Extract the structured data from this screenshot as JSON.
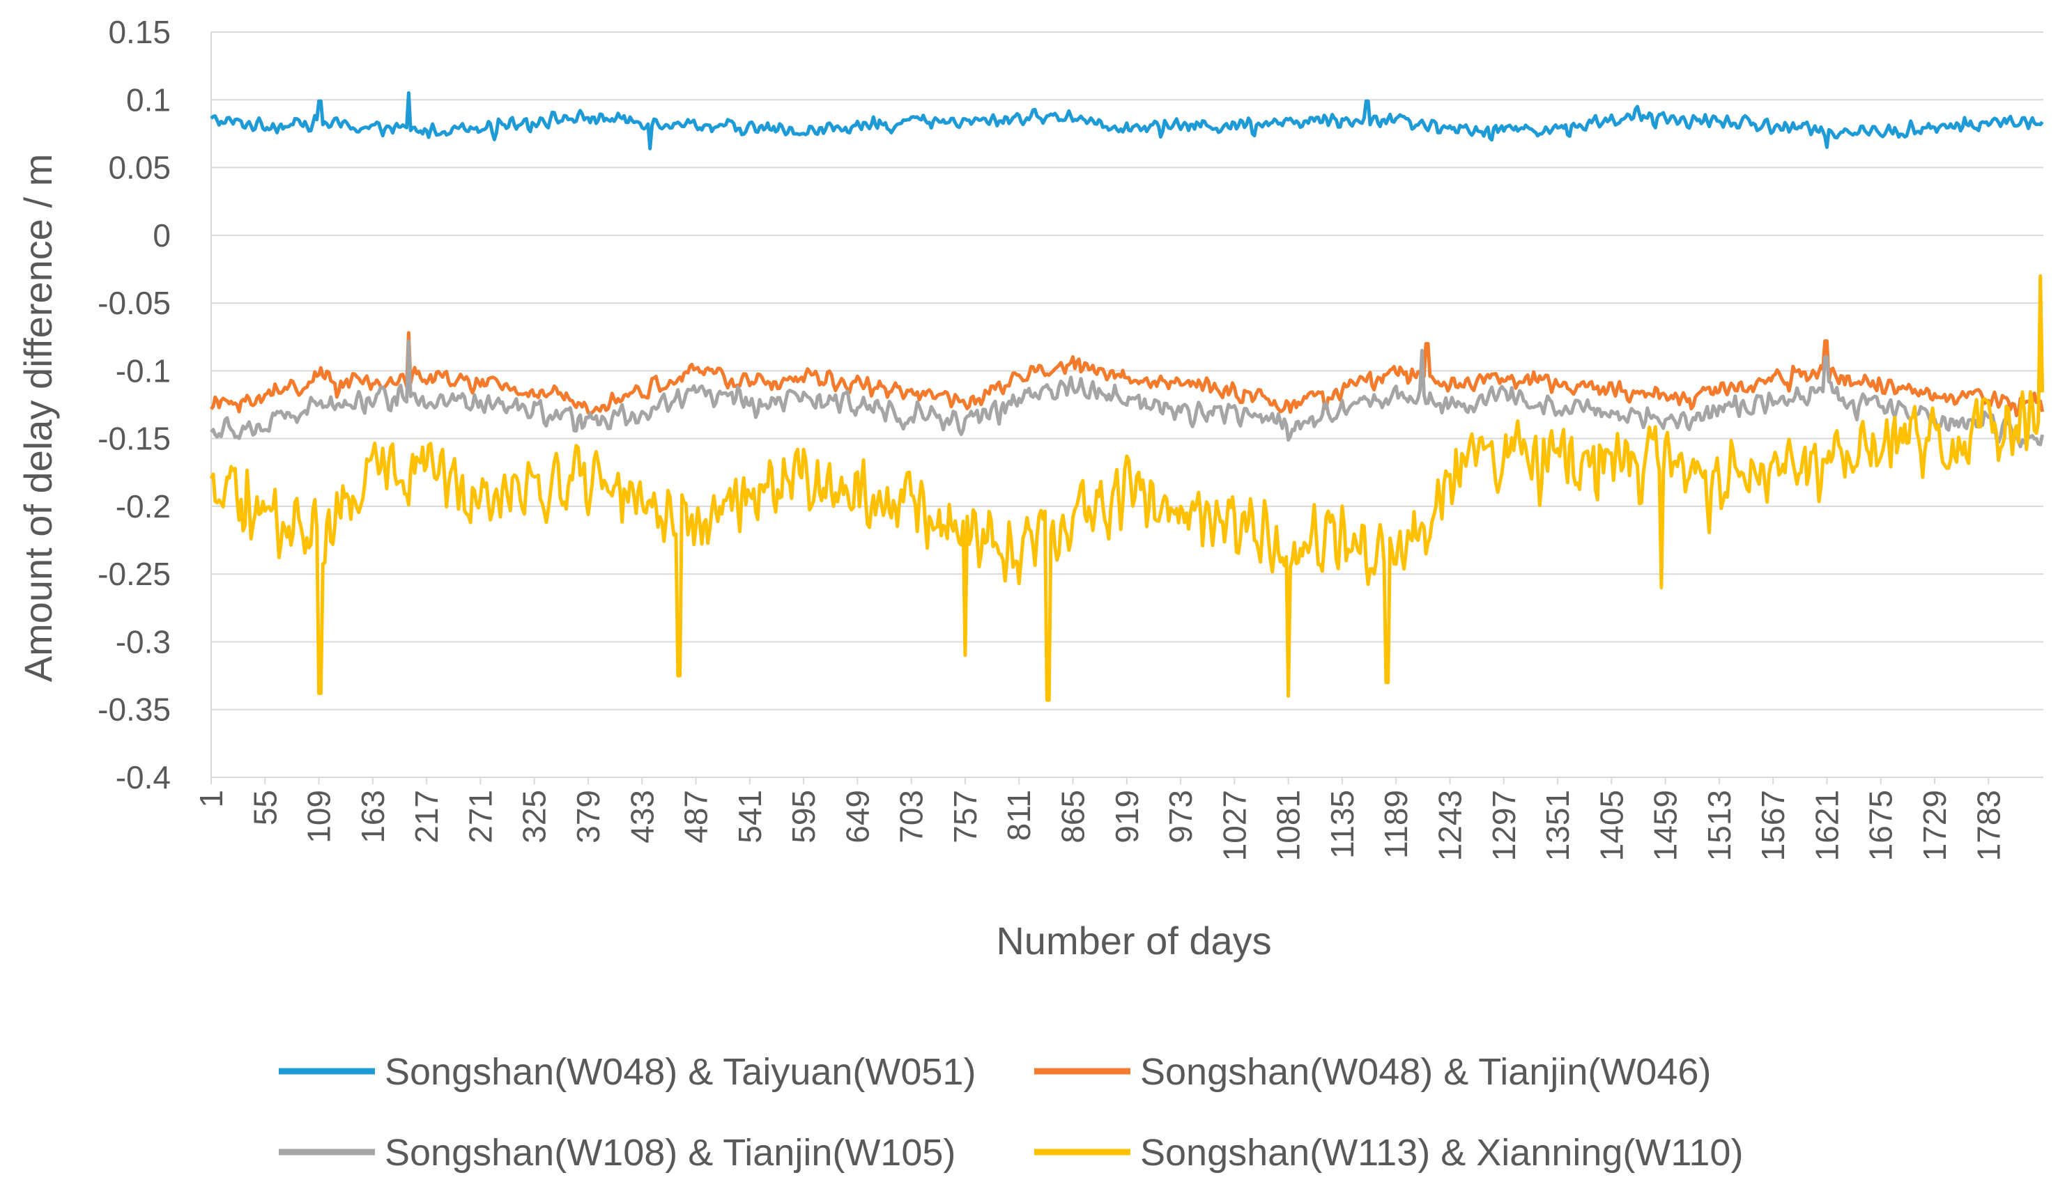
{
  "chart_data": {
    "type": "line",
    "title": "",
    "xlabel": "Number of days",
    "ylabel": "Amount of delay difference / m",
    "ylim": [
      -0.4,
      0.15
    ],
    "y_ticks": [
      "0.15",
      "0.1",
      "0.05",
      "0",
      "-0.05",
      "-0.1",
      "-0.15",
      "-0.2",
      "-0.25",
      "-0.3",
      "-0.35",
      "-0.4"
    ],
    "x_range": [
      1,
      1838
    ],
    "x_ticks": [
      "1",
      "55",
      "109",
      "163",
      "217",
      "271",
      "325",
      "379",
      "433",
      "487",
      "541",
      "595",
      "649",
      "703",
      "757",
      "811",
      "865",
      "919",
      "973",
      "1027",
      "1081",
      "1135",
      "1189",
      "1243",
      "1297",
      "1351",
      "1405",
      "1459",
      "1513",
      "1567",
      "1621",
      "1675",
      "1729",
      "1783"
    ],
    "grid": true,
    "legend_position": "bottom",
    "series": [
      {
        "name": "Songshan(W048) & Taiyuan(W051)",
        "color": "#1e9bd7",
        "x": [
          1,
          55,
          109,
          163,
          217,
          271,
          325,
          379,
          433,
          487,
          541,
          595,
          649,
          703,
          757,
          811,
          865,
          919,
          973,
          1027,
          1081,
          1135,
          1189,
          1243,
          1297,
          1351,
          1405,
          1459,
          1513,
          1567,
          1621,
          1675,
          1729,
          1783,
          1838
        ],
        "values": [
          0.085,
          0.081,
          0.083,
          0.079,
          0.077,
          0.081,
          0.085,
          0.087,
          0.084,
          0.082,
          0.079,
          0.077,
          0.08,
          0.085,
          0.083,
          0.087,
          0.088,
          0.079,
          0.081,
          0.082,
          0.084,
          0.086,
          0.085,
          0.078,
          0.079,
          0.078,
          0.086,
          0.085,
          0.084,
          0.081,
          0.077,
          0.076,
          0.079,
          0.083,
          0.084
        ],
        "noise": 0.006,
        "spikes": [
          [
            110,
            0.099
          ],
          [
            199,
            0.105
          ],
          [
            441,
            0.064
          ],
          [
            1160,
            0.099
          ],
          [
            1621,
            0.065
          ]
        ]
      },
      {
        "name": "Songshan(W048) & Tianjin(W046)",
        "color": "#f47b2c",
        "x": [
          1,
          55,
          109,
          163,
          217,
          271,
          325,
          379,
          433,
          487,
          541,
          595,
          649,
          703,
          757,
          811,
          865,
          919,
          973,
          1027,
          1081,
          1135,
          1189,
          1243,
          1297,
          1351,
          1405,
          1459,
          1513,
          1567,
          1621,
          1675,
          1729,
          1783,
          1838
        ],
        "values": [
          -0.125,
          -0.12,
          -0.105,
          -0.11,
          -0.105,
          -0.11,
          -0.115,
          -0.125,
          -0.115,
          -0.1,
          -0.11,
          -0.105,
          -0.11,
          -0.115,
          -0.125,
          -0.105,
          -0.095,
          -0.105,
          -0.11,
          -0.115,
          -0.125,
          -0.115,
          -0.1,
          -0.11,
          -0.105,
          -0.11,
          -0.115,
          -0.12,
          -0.115,
          -0.105,
          -0.1,
          -0.11,
          -0.12,
          -0.12,
          -0.125
        ],
        "noise": 0.008,
        "spikes": [
          [
            199,
            -0.072
          ],
          [
            1220,
            -0.08
          ],
          [
            1620,
            -0.078
          ]
        ]
      },
      {
        "name": "Songshan(W108) & Tianjin(W105)",
        "color": "#a5a5a5",
        "x": [
          1,
          55,
          109,
          163,
          217,
          271,
          325,
          379,
          433,
          487,
          541,
          595,
          649,
          703,
          757,
          811,
          865,
          919,
          973,
          1027,
          1081,
          1135,
          1189,
          1243,
          1297,
          1351,
          1405,
          1459,
          1513,
          1567,
          1621,
          1675,
          1729,
          1783,
          1838
        ],
        "values": [
          -0.145,
          -0.14,
          -0.125,
          -0.12,
          -0.12,
          -0.125,
          -0.13,
          -0.14,
          -0.13,
          -0.115,
          -0.125,
          -0.12,
          -0.125,
          -0.13,
          -0.14,
          -0.12,
          -0.11,
          -0.12,
          -0.13,
          -0.13,
          -0.14,
          -0.13,
          -0.115,
          -0.125,
          -0.12,
          -0.125,
          -0.13,
          -0.135,
          -0.13,
          -0.12,
          -0.115,
          -0.125,
          -0.135,
          -0.14,
          -0.155
        ],
        "noise": 0.01,
        "spikes": [
          [
            199,
            -0.078
          ],
          [
            1215,
            -0.085
          ],
          [
            1620,
            -0.09
          ]
        ]
      },
      {
        "name": "Songshan(W113) & Xianning(W110)",
        "color": "#ffc000",
        "x": [
          1,
          55,
          109,
          163,
          217,
          271,
          325,
          379,
          433,
          487,
          541,
          595,
          649,
          703,
          757,
          811,
          865,
          919,
          973,
          1027,
          1081,
          1135,
          1189,
          1243,
          1297,
          1351,
          1405,
          1459,
          1513,
          1567,
          1621,
          1675,
          1729,
          1783,
          1838
        ],
        "values": [
          -0.19,
          -0.21,
          -0.22,
          -0.18,
          -0.17,
          -0.19,
          -0.185,
          -0.18,
          -0.2,
          -0.21,
          -0.19,
          -0.18,
          -0.185,
          -0.2,
          -0.22,
          -0.23,
          -0.21,
          -0.19,
          -0.2,
          -0.21,
          -0.23,
          -0.22,
          -0.24,
          -0.18,
          -0.16,
          -0.165,
          -0.16,
          -0.17,
          -0.175,
          -0.17,
          -0.17,
          -0.15,
          -0.155,
          -0.145,
          -0.14
        ],
        "noise": 0.03,
        "spikes": [
          [
            110,
            -0.338
          ],
          [
            470,
            -0.325
          ],
          [
            757,
            -0.31
          ],
          [
            840,
            -0.343
          ],
          [
            1081,
            -0.34
          ],
          [
            1180,
            -0.33
          ],
          [
            1455,
            -0.26
          ],
          [
            1835,
            -0.03
          ]
        ]
      }
    ]
  }
}
